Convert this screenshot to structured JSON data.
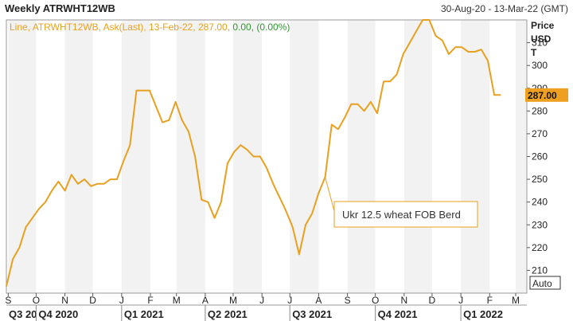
{
  "header": {
    "title": "Weekly ATRWHT12WB",
    "date_range": "30-Aug-20 - 13-Mar-22 (GMT)"
  },
  "legend": {
    "prefix": "Line, ATRWHT12WB, Ask(Last), 13-Feb-22, 287.00, ",
    "change": "0.00, (0.00%)"
  },
  "axis": {
    "price_label": [
      "Price",
      "USD",
      "T"
    ],
    "auto_label": "Auto",
    "last_value_label": "287.00"
  },
  "annotation": {
    "text": "Ukr 12.5 wheat FOB Berd"
  },
  "colors": {
    "line": "#E8A020",
    "change_text": "#2E9A2E",
    "last_value_bg": "#F0A020",
    "band": "#F2F2F2",
    "annotation_border": "#E8A020"
  },
  "chart_data": {
    "type": "line",
    "title": "Weekly ATRWHT12WB",
    "ylabel": "Price USD T",
    "ylim": [
      200,
      320
    ],
    "yticks": [
      210,
      220,
      230,
      240,
      250,
      260,
      270,
      280,
      290,
      300,
      310
    ],
    "xlim": [
      "2020-08-30",
      "2022-03-13"
    ],
    "month_ticks": [
      {
        "date": "2020-09-01",
        "label": "S"
      },
      {
        "date": "2020-10-01",
        "label": "O"
      },
      {
        "date": "2020-11-01",
        "label": "N"
      },
      {
        "date": "2020-12-01",
        "label": "D"
      },
      {
        "date": "2021-01-01",
        "label": "J"
      },
      {
        "date": "2021-02-01",
        "label": "F"
      },
      {
        "date": "2021-03-01",
        "label": "M"
      },
      {
        "date": "2021-04-01",
        "label": "A"
      },
      {
        "date": "2021-05-01",
        "label": "M"
      },
      {
        "date": "2021-06-01",
        "label": "J"
      },
      {
        "date": "2021-07-01",
        "label": "J"
      },
      {
        "date": "2021-08-01",
        "label": "A"
      },
      {
        "date": "2021-09-01",
        "label": "S"
      },
      {
        "date": "2021-10-01",
        "label": "O"
      },
      {
        "date": "2021-11-01",
        "label": "N"
      },
      {
        "date": "2021-12-01",
        "label": "D"
      },
      {
        "date": "2022-01-01",
        "label": "J"
      },
      {
        "date": "2022-02-01",
        "label": "F"
      },
      {
        "date": "2022-03-01",
        "label": "M"
      }
    ],
    "quarter_labels": [
      {
        "date": "2020-07-01",
        "label": "Q3 20"
      },
      {
        "date": "2020-10-01",
        "label": "Q4 2020"
      },
      {
        "date": "2021-01-01",
        "label": "Q1 2021"
      },
      {
        "date": "2021-04-01",
        "label": "Q2 2021"
      },
      {
        "date": "2021-07-01",
        "label": "Q3 2021"
      },
      {
        "date": "2021-10-01",
        "label": "Q4 2021"
      },
      {
        "date": "2022-01-01",
        "label": "Q1 2022"
      }
    ],
    "series": [
      {
        "points": [
          [
            "2020-08-30",
            203
          ],
          [
            "2020-09-06",
            215
          ],
          [
            "2020-09-13",
            220
          ],
          [
            "2020-09-20",
            229
          ],
          [
            "2020-09-27",
            233
          ],
          [
            "2020-10-04",
            237
          ],
          [
            "2020-10-11",
            240
          ],
          [
            "2020-10-18",
            245
          ],
          [
            "2020-10-25",
            249
          ],
          [
            "2020-11-01",
            245
          ],
          [
            "2020-11-08",
            252
          ],
          [
            "2020-11-15",
            248
          ],
          [
            "2020-11-22",
            250
          ],
          [
            "2020-11-29",
            247
          ],
          [
            "2020-12-06",
            248
          ],
          [
            "2020-12-13",
            248
          ],
          [
            "2020-12-20",
            250
          ],
          [
            "2020-12-27",
            250
          ],
          [
            "2021-01-03",
            258
          ],
          [
            "2021-01-10",
            265
          ],
          [
            "2021-01-17",
            289
          ],
          [
            "2021-01-24",
            289
          ],
          [
            "2021-01-31",
            289
          ],
          [
            "2021-02-07",
            282
          ],
          [
            "2021-02-14",
            275
          ],
          [
            "2021-02-21",
            276
          ],
          [
            "2021-02-28",
            284
          ],
          [
            "2021-03-07",
            276
          ],
          [
            "2021-03-14",
            271
          ],
          [
            "2021-03-21",
            260
          ],
          [
            "2021-03-28",
            241
          ],
          [
            "2021-04-04",
            240
          ],
          [
            "2021-04-11",
            233
          ],
          [
            "2021-04-18",
            240
          ],
          [
            "2021-04-25",
            257
          ],
          [
            "2021-05-02",
            262
          ],
          [
            "2021-05-09",
            265
          ],
          [
            "2021-05-16",
            263
          ],
          [
            "2021-05-23",
            260
          ],
          [
            "2021-05-30",
            260
          ],
          [
            "2021-06-06",
            255
          ],
          [
            "2021-06-13",
            248
          ],
          [
            "2021-06-20",
            242
          ],
          [
            "2021-06-27",
            236
          ],
          [
            "2021-07-04",
            229
          ],
          [
            "2021-07-11",
            217
          ],
          [
            "2021-07-18",
            230
          ],
          [
            "2021-07-25",
            235
          ],
          [
            "2021-08-01",
            244
          ],
          [
            "2021-08-08",
            251
          ],
          [
            "2021-08-15",
            274
          ],
          [
            "2021-08-22",
            272
          ],
          [
            "2021-08-29",
            277
          ],
          [
            "2021-09-05",
            283
          ],
          [
            "2021-09-12",
            283
          ],
          [
            "2021-09-19",
            280
          ],
          [
            "2021-09-26",
            284
          ],
          [
            "2021-10-03",
            279
          ],
          [
            "2021-10-10",
            293
          ],
          [
            "2021-10-17",
            293
          ],
          [
            "2021-10-24",
            296
          ],
          [
            "2021-10-31",
            305
          ],
          [
            "2021-11-07",
            310
          ],
          [
            "2021-11-14",
            315
          ],
          [
            "2021-11-21",
            325
          ],
          [
            "2021-11-28",
            325
          ],
          [
            "2021-12-05",
            313
          ],
          [
            "2021-12-12",
            311
          ],
          [
            "2021-12-19",
            305
          ],
          [
            "2021-12-26",
            308
          ],
          [
            "2022-01-02",
            308
          ],
          [
            "2022-01-09",
            306
          ],
          [
            "2022-01-16",
            306
          ],
          [
            "2022-01-23",
            307
          ],
          [
            "2022-01-30",
            302
          ],
          [
            "2022-02-06",
            287
          ],
          [
            "2022-02-13",
            287
          ]
        ]
      }
    ]
  }
}
